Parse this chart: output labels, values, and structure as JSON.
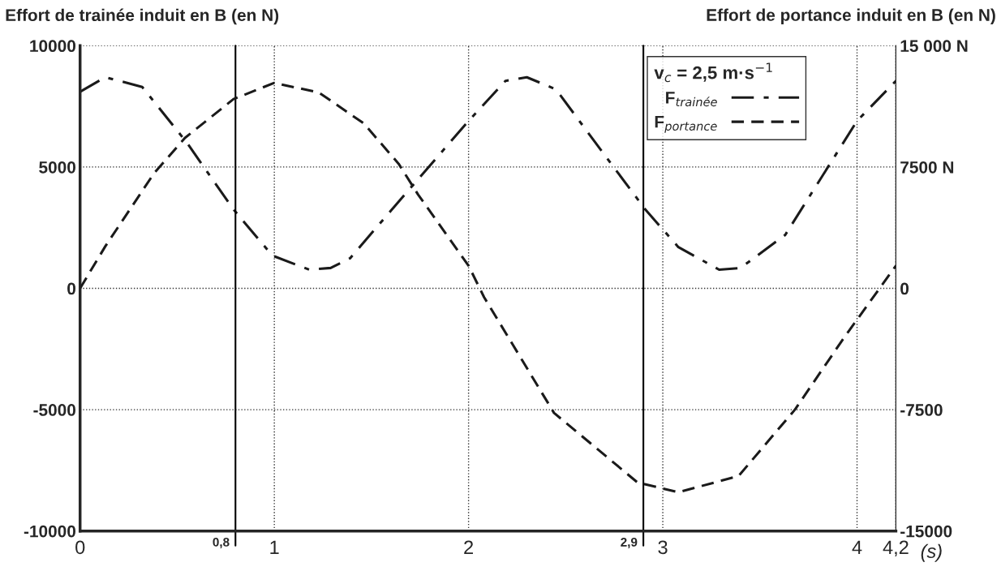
{
  "chart_data": {
    "type": "line",
    "xlabel": "(s)",
    "ylabel": "Effort de trainée induit en B (en N)",
    "y2label": "Effort de portance induit en B (en N)",
    "legend_title": "v$_{c}$ = 2,5 m·s$^{−1}$",
    "xlim": [
      0,
      4.2
    ],
    "xticks": [
      0,
      1,
      2,
      3,
      4,
      {
        "value": 4.2,
        "label": "4,2"
      }
    ],
    "ylim": [
      -10000,
      10000
    ],
    "yticks": [
      -10000,
      -5000,
      0,
      5000,
      10000
    ],
    "y2lim": [
      -15000,
      15000
    ],
    "y2ticks": [
      -15000,
      -7500,
      0,
      {
        "value": 7500,
        "label": "7500 N"
      },
      {
        "value": 15000,
        "label": "15 000 N"
      }
    ],
    "grid": true,
    "legend": "top right",
    "ref_lines": [
      {
        "axis": "x",
        "value": 0.8,
        "label": "0,8",
        "color": "#000000",
        "line_style": "solid"
      },
      {
        "axis": "x",
        "value": 2.9,
        "label": "2,9",
        "color": "#000000",
        "line_style": "solid"
      }
    ],
    "series": [
      {
        "name": "F$_{trainée}$",
        "color": "#1a1a1a",
        "line_style": "dashdot",
        "x": [
          0,
          0.13,
          0.32,
          0.55,
          0.79,
          0.99,
          1.18,
          1.29,
          1.39,
          1.6,
          2.0,
          2.19,
          2.3,
          2.45,
          2.7,
          2.91,
          3.08,
          3.29,
          3.4,
          3.63,
          4.0,
          4.2
        ],
        "values": [
          8100,
          8700,
          8300,
          6000,
          3250,
          1350,
          770,
          840,
          1240,
          3200,
          6900,
          8550,
          8700,
          8200,
          5500,
          3250,
          1700,
          770,
          840,
          2200,
          6900,
          8550
        ]
      },
      {
        "name": "F$_{portance}$",
        "color": "#1a1a1a",
        "line_style": "dashed",
        "axis": "y2",
        "x": [
          0,
          0.13,
          0.38,
          0.54,
          0.79,
          1.0,
          1.23,
          1.46,
          1.64,
          1.74,
          2.0,
          2.08,
          2.44,
          2.87,
          3.08,
          3.39,
          3.68,
          3.93,
          4.2
        ],
        "values": [
          0,
          2600,
          7100,
          9300,
          11700,
          12700,
          12100,
          10200,
          7700,
          5800,
          1400,
          -550,
          -7700,
          -12000,
          -12600,
          -11600,
          -7500,
          -3100,
          1400
        ]
      }
    ]
  }
}
